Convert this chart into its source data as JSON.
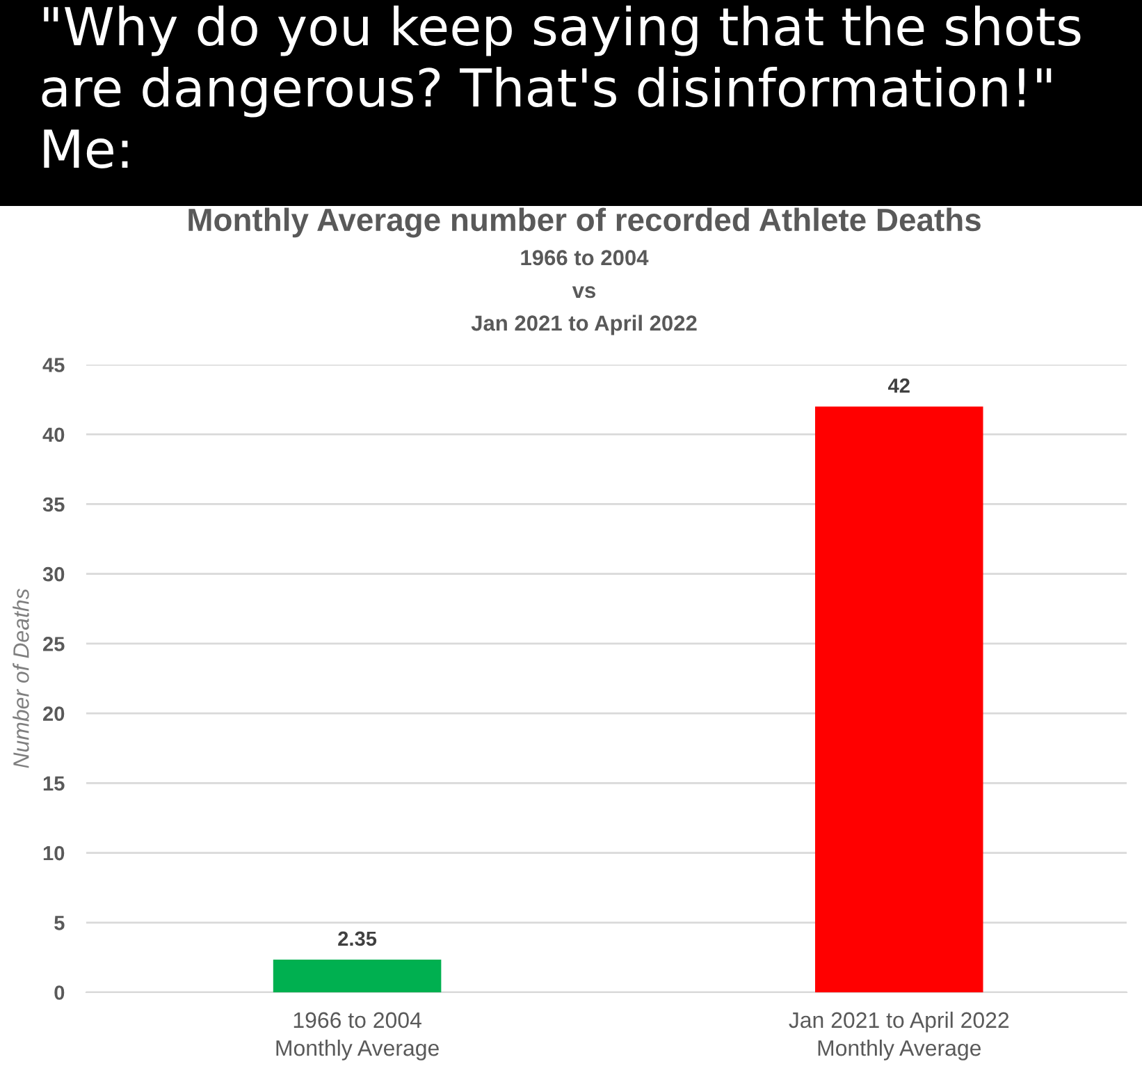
{
  "chart_data": {
    "type": "bar",
    "title": "Monthly Average number of recorded Athlete Deaths",
    "subtitle": "1966 to 2004\nvs\nJan 2021 to April 2022",
    "ylabel": "Number of Deaths",
    "annotations": [
      "\"Why do you keep saying that the shots\nare dangerous? That's disinformation!\"\nMe:"
    ],
    "categories": [
      "1966 to 2004\nMonthly Average",
      "Jan 2021 to April 2022\nMonthly Average"
    ],
    "values": [
      2.35,
      42
    ],
    "colors": [
      "#00b050",
      "#ff0000"
    ],
    "ylim": [
      0,
      45
    ],
    "yticks": [
      0,
      5,
      10,
      15,
      20,
      25,
      30,
      35,
      40,
      45
    ],
    "grid": "y",
    "data_labels": true
  }
}
